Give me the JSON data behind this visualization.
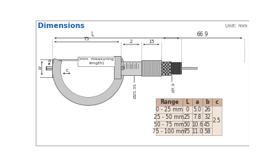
{
  "title": "Dimensions",
  "unit_label": "Unit: mm",
  "bg_color": "#ffffff",
  "table_header_color": "#d4b09a",
  "table_bg_color": "#f2e4d8",
  "table_headers": [
    "Range",
    "L",
    "a",
    "b",
    "c"
  ],
  "table_rows": [
    [
      "0 - 25 mm",
      "0",
      "5.0",
      "26",
      ""
    ],
    [
      "25 - 50 mm",
      "25",
      "7.8",
      "32",
      ""
    ],
    [
      "50 - 75 mm",
      "50",
      "10.6",
      "45",
      ""
    ],
    [
      "75 - 100 mm",
      "75",
      "11.0",
      "58",
      ""
    ]
  ],
  "c_merged_value": "2.5",
  "dim_labels": {
    "L": "L",
    "75": "75",
    "2": "2",
    "15": "15",
    "66_9": "66.9",
    "a": "a",
    "b": "b",
    "c": "c",
    "min_measuring": "(min. measuring\nlength)",
    "phi1": "Ø25.35",
    "phi2": "Ø7.9"
  },
  "frame_color": "#c8c8c8",
  "frame_edge": "#666666",
  "spindle_color": "#d8d8d8",
  "sleeve_color": "#d0d0d0",
  "thimble_color": "#b8b8b8",
  "ratchet_color": "#444444"
}
